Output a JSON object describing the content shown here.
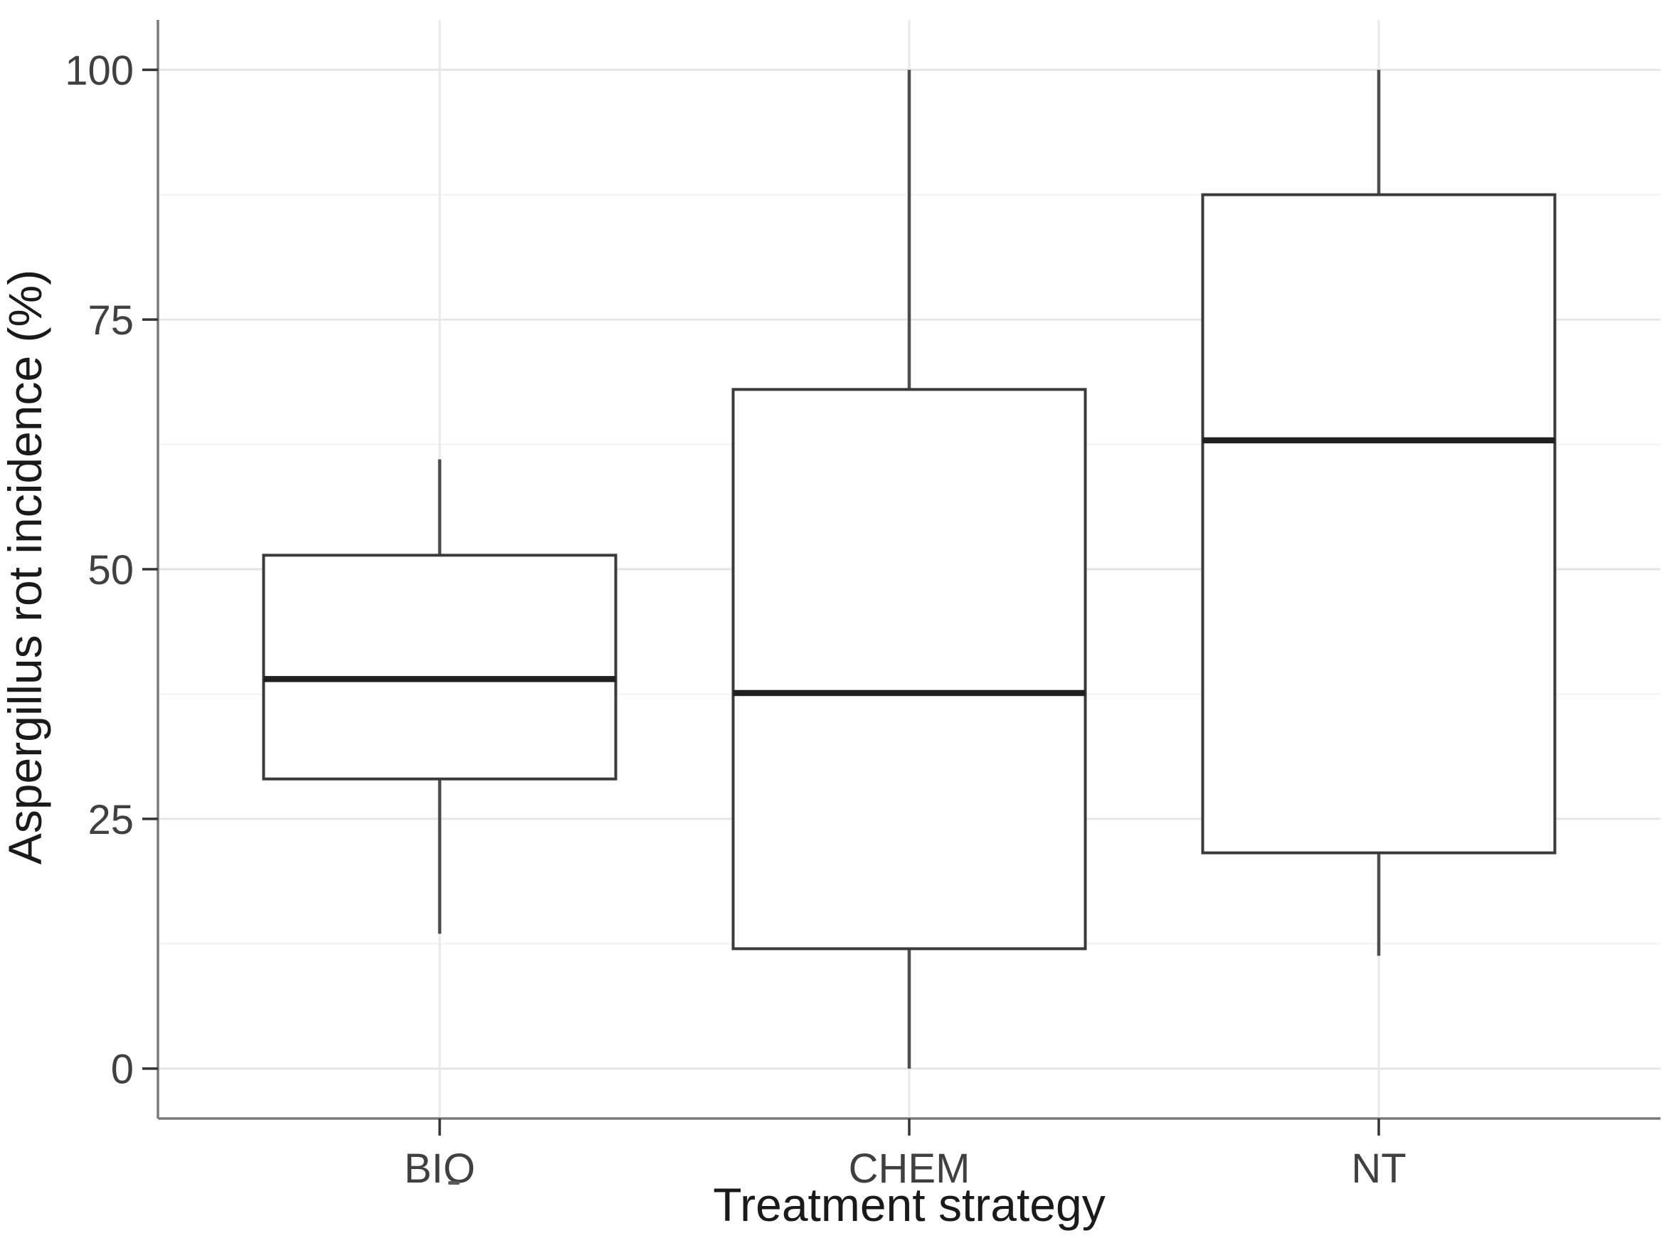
{
  "figure": {
    "background_color": "#ffffff"
  },
  "chart_data": {
    "type": "boxplot",
    "title": "",
    "xlabel": "Treatment strategy",
    "ylabel": "Aspergillus rot incidence (%)",
    "categories": [
      "BIO",
      "CHEM",
      "NT"
    ],
    "yticks": [
      0,
      25,
      50,
      75,
      100
    ],
    "ylim": [
      0,
      100
    ],
    "minor_gridlines": [
      12.5,
      37.5,
      62.5,
      87.5
    ],
    "grid": "major+minor horizontal, major vertical at categories",
    "legend": "none",
    "series": [
      {
        "name": "BIO",
        "whisker_low": 13.5,
        "q1": 29,
        "median": 39,
        "q3": 51.4,
        "whisker_high": 61,
        "outliers": []
      },
      {
        "name": "CHEM",
        "whisker_low": 0,
        "q1": 12,
        "median": 37.6,
        "q3": 68,
        "whisker_high": 100,
        "outliers": []
      },
      {
        "name": "NT",
        "whisker_low": 11.3,
        "q1": 21.6,
        "median": 62.9,
        "q3": 87.5,
        "whisker_high": 100,
        "outliers": []
      }
    ],
    "box_fill": "#ffffff",
    "colors": {
      "box_stroke": "#3a3a3a",
      "median_stroke": "#1f1f1f",
      "whisker_stroke": "#4d4d4d",
      "axis_line": "#7a7a7a",
      "tick_mark": "#333333",
      "tick_label": "#404040",
      "axis_title": "#1a1a1a",
      "major_grid": "#e6e6e6",
      "minor_grid": "#f4f4f4",
      "category_grid": "#e9e9e9",
      "panel_background": "#ffffff"
    },
    "stray_mark_below_first_label": true
  }
}
